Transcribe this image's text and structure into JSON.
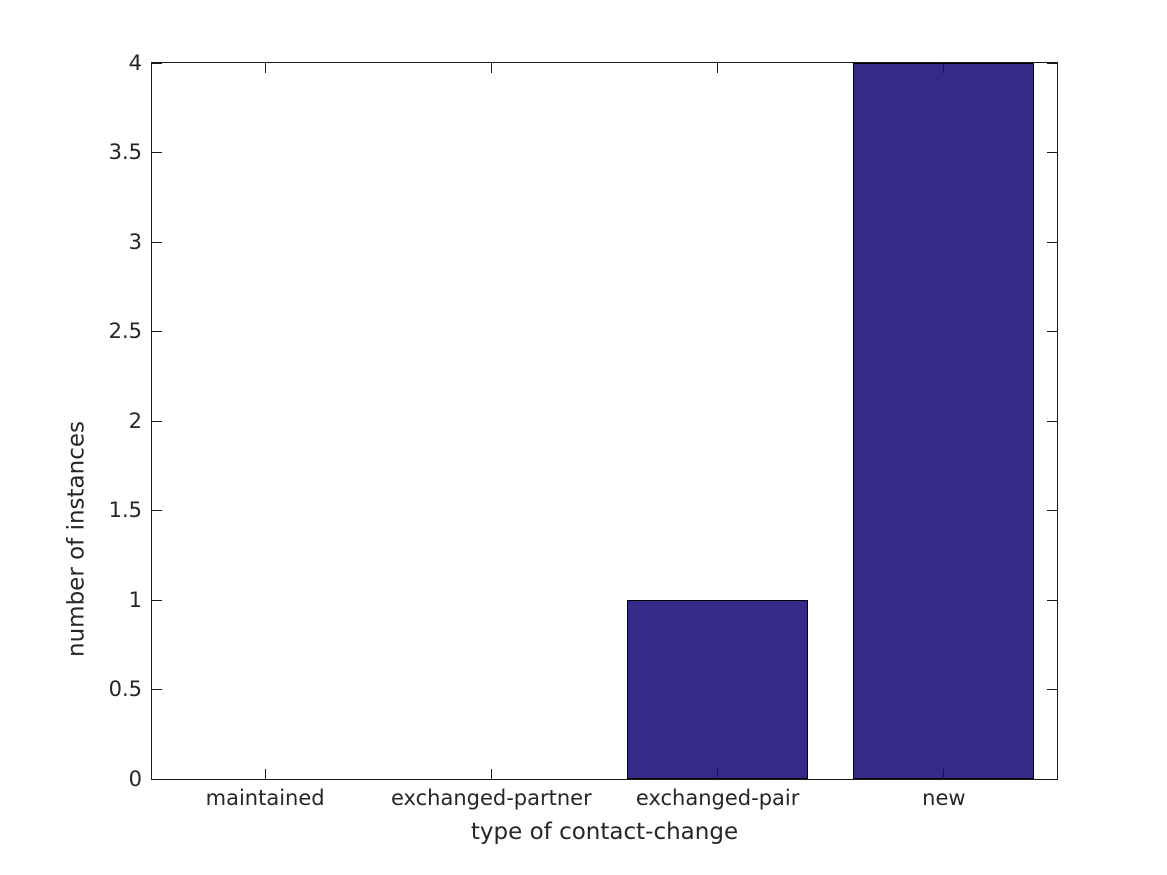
{
  "chart_data": {
    "type": "bar",
    "title": "",
    "categories": [
      "maintained",
      "exchanged-partner",
      "exchanged-pair",
      "new"
    ],
    "values": [
      0,
      0,
      1,
      4
    ],
    "xlabel": "type of contact-change",
    "ylabel": "number of instances",
    "xlim": [
      0.5,
      4.5
    ],
    "ylim": [
      0,
      4
    ],
    "yticks": [
      0,
      0.5,
      1,
      1.5,
      2,
      2.5,
      3,
      3.5,
      4
    ],
    "ytick_labels": [
      "0",
      "0.5",
      "1",
      "1.5",
      "2",
      "2.5",
      "3",
      "3.5",
      "4"
    ],
    "bar_width_fraction": 0.8,
    "bar_color": "#352a87",
    "bar_edge_color": "#000000",
    "axis_color": "#1a1a1a",
    "text_color": "#262626",
    "background_color": "#ffffff",
    "grid": false,
    "legend": null,
    "tick_style": "inward-mirrored"
  }
}
